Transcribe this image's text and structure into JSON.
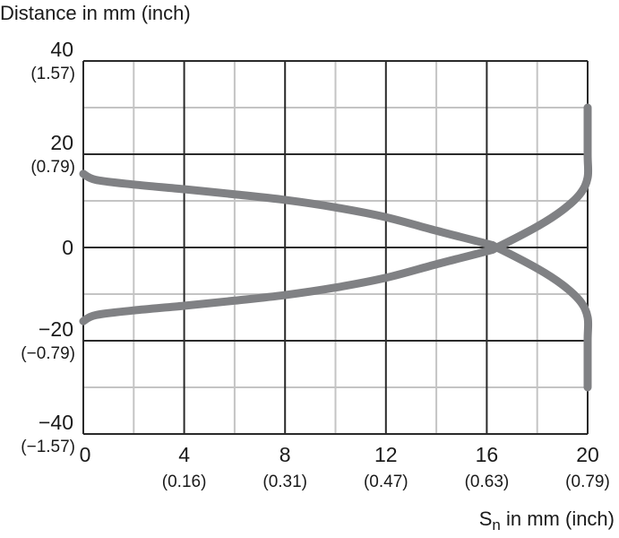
{
  "chart_data": {
    "type": "line",
    "ylabel": "Distance in mm (inch)",
    "xlabel_main": "S",
    "xlabel_sub": "n",
    "xlabel_rest": " in mm (inch)",
    "xlim": [
      0,
      20
    ],
    "ylim": [
      -40,
      40
    ],
    "grid": true,
    "x_ticks": [
      {
        "value": 0,
        "label": "0",
        "sub": ""
      },
      {
        "value": 4,
        "label": "4",
        "sub": "(0.16)"
      },
      {
        "value": 8,
        "label": "8",
        "sub": "(0.31)"
      },
      {
        "value": 12,
        "label": "12",
        "sub": "(0.47)"
      },
      {
        "value": 16,
        "label": "16",
        "sub": "(0.63)"
      },
      {
        "value": 20,
        "label": "20",
        "sub": "(0.79)"
      }
    ],
    "y_ticks": [
      {
        "value": 40,
        "label": "40",
        "sub": "(1.57)"
      },
      {
        "value": 20,
        "label": "20",
        "sub": "(0.79)"
      },
      {
        "value": 0,
        "label": "0",
        "sub": ""
      },
      {
        "value": -20,
        "label": "−20",
        "sub": "(−0.79)"
      },
      {
        "value": -40,
        "label": "−40",
        "sub": "(−1.57)"
      }
    ],
    "line_color": "#808184",
    "series": [
      {
        "x": [
          0,
          0.5,
          2,
          4,
          6,
          8,
          10,
          12,
          14,
          16,
          16.4,
          18,
          19,
          19.7,
          20,
          20,
          20
        ],
        "y": [
          15.8,
          14.5,
          13.5,
          12.5,
          11.4,
          10.2,
          8.6,
          6.5,
          3.6,
          0.8,
          0,
          -4.5,
          -8,
          -11.5,
          -15,
          -20,
          -30
        ]
      },
      {
        "x": [
          0,
          0.5,
          2,
          4,
          6,
          8,
          10,
          12,
          14,
          16,
          16.4,
          18,
          19,
          19.7,
          20,
          20,
          20
        ],
        "y": [
          -15.8,
          -14.5,
          -13.5,
          -12.5,
          -11.4,
          -10.2,
          -8.6,
          -6.5,
          -3.6,
          -0.8,
          0,
          4.5,
          8,
          11.5,
          15,
          20,
          30
        ]
      }
    ]
  }
}
